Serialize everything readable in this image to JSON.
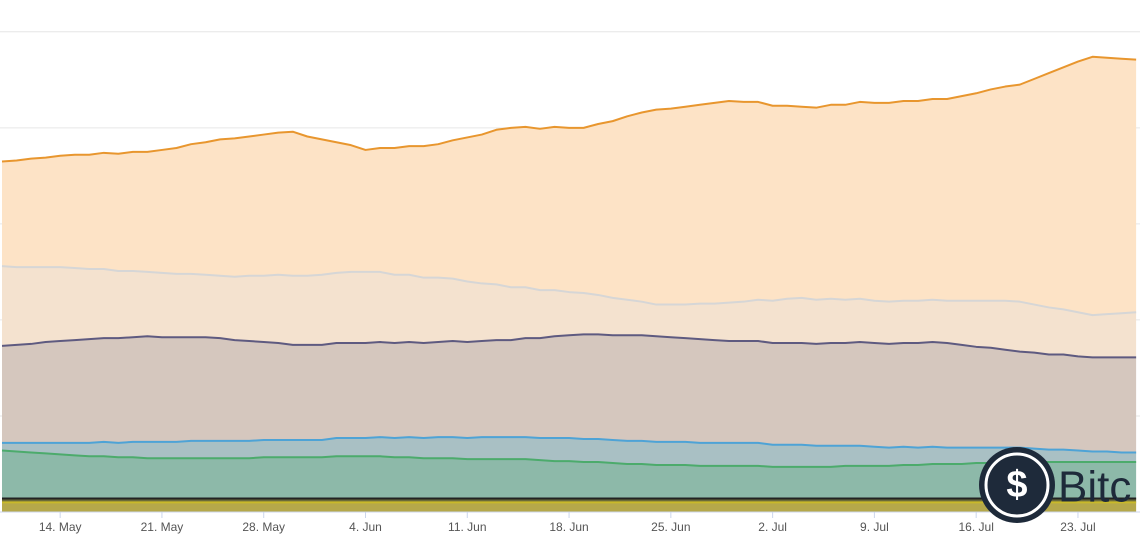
{
  "chart_data": {
    "type": "stacked-area",
    "categories": [
      null,
      null,
      null,
      null,
      "14. May",
      null,
      null,
      null,
      null,
      null,
      null,
      "21. May",
      null,
      null,
      null,
      null,
      null,
      null,
      "28. May",
      null,
      null,
      null,
      null,
      null,
      null,
      "4. Jun",
      null,
      null,
      null,
      null,
      null,
      null,
      "11. Jun",
      null,
      null,
      null,
      null,
      null,
      null,
      "18. Jun",
      null,
      null,
      null,
      null,
      null,
      null,
      "25. Jun",
      null,
      null,
      null,
      null,
      null,
      null,
      "2. Jul",
      null,
      null,
      null,
      null,
      null,
      null,
      "9. Jul",
      null,
      null,
      null,
      null,
      null,
      null,
      "16. Jul",
      null,
      null,
      null,
      null,
      null,
      null,
      "23. Jul",
      null,
      null,
      null,
      null
    ],
    "ylim": [
      0,
      5.3
    ],
    "yticks": [
      1,
      2,
      3,
      4,
      5
    ],
    "grid": true,
    "series": [
      {
        "color": "#c9b92a",
        "fill": "#b5a84a",
        "values": [
          0.1,
          0.1,
          0.1,
          0.1,
          0.1,
          0.1,
          0.1,
          0.1,
          0.1,
          0.1,
          0.1,
          0.1,
          0.1,
          0.1,
          0.1,
          0.1,
          0.1,
          0.1,
          0.1,
          0.1,
          0.1,
          0.1,
          0.1,
          0.1,
          0.1,
          0.1,
          0.1,
          0.1,
          0.1,
          0.1,
          0.1,
          0.1,
          0.1,
          0.1,
          0.1,
          0.1,
          0.1,
          0.1,
          0.1,
          0.1,
          0.1,
          0.1,
          0.1,
          0.1,
          0.1,
          0.1,
          0.1,
          0.1,
          0.1,
          0.1,
          0.1,
          0.1,
          0.1,
          0.1,
          0.1,
          0.1,
          0.1,
          0.1,
          0.1,
          0.1,
          0.1,
          0.1,
          0.1,
          0.1,
          0.1,
          0.1,
          0.1,
          0.1,
          0.1,
          0.1,
          0.1,
          0.1,
          0.1,
          0.1,
          0.1,
          0.1,
          0.1,
          0.1,
          0.1
        ]
      },
      {
        "color": "#222222",
        "fill": "#6b6b3a",
        "values": [
          0.04,
          0.04,
          0.04,
          0.04,
          0.04,
          0.04,
          0.04,
          0.04,
          0.04,
          0.04,
          0.04,
          0.04,
          0.04,
          0.04,
          0.04,
          0.04,
          0.04,
          0.04,
          0.04,
          0.04,
          0.04,
          0.04,
          0.04,
          0.04,
          0.04,
          0.04,
          0.04,
          0.04,
          0.04,
          0.04,
          0.04,
          0.04,
          0.04,
          0.04,
          0.04,
          0.04,
          0.04,
          0.04,
          0.04,
          0.04,
          0.04,
          0.04,
          0.04,
          0.04,
          0.04,
          0.04,
          0.04,
          0.04,
          0.04,
          0.04,
          0.04,
          0.04,
          0.04,
          0.04,
          0.04,
          0.04,
          0.04,
          0.04,
          0.04,
          0.04,
          0.04,
          0.04,
          0.04,
          0.04,
          0.04,
          0.04,
          0.04,
          0.04,
          0.04,
          0.04,
          0.04,
          0.04,
          0.04,
          0.04,
          0.04,
          0.04,
          0.04,
          0.04,
          0.04
        ]
      },
      {
        "color": "#4cab6c",
        "fill": "#8db9a9",
        "values": [
          0.5,
          0.49,
          0.48,
          0.47,
          0.46,
          0.45,
          0.44,
          0.44,
          0.43,
          0.43,
          0.42,
          0.42,
          0.42,
          0.42,
          0.42,
          0.42,
          0.42,
          0.42,
          0.43,
          0.43,
          0.43,
          0.43,
          0.43,
          0.44,
          0.44,
          0.44,
          0.44,
          0.43,
          0.43,
          0.42,
          0.42,
          0.42,
          0.41,
          0.41,
          0.41,
          0.41,
          0.41,
          0.4,
          0.39,
          0.39,
          0.38,
          0.38,
          0.37,
          0.36,
          0.36,
          0.35,
          0.35,
          0.35,
          0.34,
          0.34,
          0.34,
          0.34,
          0.34,
          0.33,
          0.33,
          0.33,
          0.33,
          0.33,
          0.34,
          0.34,
          0.34,
          0.34,
          0.35,
          0.35,
          0.36,
          0.36,
          0.36,
          0.37,
          0.37,
          0.38,
          0.38,
          0.38,
          0.38,
          0.38,
          0.38,
          0.38,
          0.38,
          0.38,
          0.38
        ]
      },
      {
        "color": "#4ea3d6",
        "fill": "#a9c0c4",
        "values": [
          0.08,
          0.09,
          0.1,
          0.11,
          0.12,
          0.13,
          0.14,
          0.15,
          0.15,
          0.16,
          0.17,
          0.17,
          0.17,
          0.18,
          0.18,
          0.18,
          0.18,
          0.18,
          0.18,
          0.18,
          0.18,
          0.18,
          0.18,
          0.19,
          0.19,
          0.19,
          0.2,
          0.2,
          0.21,
          0.21,
          0.22,
          0.22,
          0.22,
          0.23,
          0.23,
          0.23,
          0.23,
          0.23,
          0.24,
          0.24,
          0.24,
          0.24,
          0.24,
          0.24,
          0.24,
          0.24,
          0.24,
          0.24,
          0.24,
          0.24,
          0.24,
          0.24,
          0.24,
          0.23,
          0.23,
          0.23,
          0.22,
          0.22,
          0.21,
          0.21,
          0.2,
          0.19,
          0.19,
          0.18,
          0.18,
          0.17,
          0.17,
          0.16,
          0.16,
          0.15,
          0.15,
          0.14,
          0.13,
          0.13,
          0.12,
          0.11,
          0.11,
          0.1,
          0.1
        ]
      },
      {
        "color": "#5e5a80",
        "fill": "#d5c7be",
        "values": [
          1.01,
          1.02,
          1.03,
          1.05,
          1.06,
          1.07,
          1.08,
          1.08,
          1.09,
          1.09,
          1.1,
          1.09,
          1.09,
          1.08,
          1.08,
          1.07,
          1.05,
          1.04,
          1.02,
          1.01,
          0.99,
          0.99,
          0.99,
          0.99,
          0.99,
          0.99,
          0.99,
          0.99,
          0.99,
          0.99,
          0.99,
          1.0,
          1.0,
          1.0,
          1.01,
          1.01,
          1.03,
          1.04,
          1.06,
          1.07,
          1.09,
          1.09,
          1.09,
          1.1,
          1.1,
          1.1,
          1.09,
          1.08,
          1.08,
          1.07,
          1.06,
          1.06,
          1.06,
          1.06,
          1.06,
          1.06,
          1.06,
          1.07,
          1.07,
          1.08,
          1.08,
          1.08,
          1.08,
          1.09,
          1.09,
          1.09,
          1.07,
          1.05,
          1.04,
          1.02,
          1.0,
          1.0,
          0.99,
          0.99,
          0.98,
          0.98,
          0.98,
          0.99,
          0.99
        ]
      },
      {
        "color": "#d6d6d6",
        "fill": "#f4e2cf",
        "values": [
          0.83,
          0.81,
          0.8,
          0.78,
          0.77,
          0.75,
          0.73,
          0.72,
          0.7,
          0.69,
          0.67,
          0.67,
          0.66,
          0.66,
          0.65,
          0.65,
          0.66,
          0.68,
          0.69,
          0.71,
          0.72,
          0.72,
          0.73,
          0.73,
          0.74,
          0.74,
          0.73,
          0.71,
          0.7,
          0.68,
          0.67,
          0.65,
          0.63,
          0.6,
          0.58,
          0.55,
          0.53,
          0.5,
          0.48,
          0.45,
          0.43,
          0.41,
          0.39,
          0.37,
          0.35,
          0.33,
          0.34,
          0.35,
          0.37,
          0.38,
          0.4,
          0.41,
          0.43,
          0.44,
          0.46,
          0.47,
          0.46,
          0.46,
          0.45,
          0.45,
          0.44,
          0.44,
          0.44,
          0.44,
          0.44,
          0.44,
          0.46,
          0.48,
          0.49,
          0.51,
          0.52,
          0.5,
          0.49,
          0.47,
          0.46,
          0.44,
          0.45,
          0.46,
          0.47
        ]
      },
      {
        "color": "#e8962e",
        "fill": "#fde3c6",
        "values": [
          1.09,
          1.11,
          1.13,
          1.14,
          1.16,
          1.18,
          1.19,
          1.21,
          1.22,
          1.24,
          1.25,
          1.28,
          1.31,
          1.35,
          1.38,
          1.42,
          1.44,
          1.45,
          1.47,
          1.48,
          1.5,
          1.45,
          1.41,
          1.36,
          1.32,
          1.27,
          1.29,
          1.32,
          1.34,
          1.37,
          1.39,
          1.44,
          1.5,
          1.55,
          1.61,
          1.66,
          1.67,
          1.68,
          1.7,
          1.71,
          1.72,
          1.78,
          1.84,
          1.91,
          1.97,
          2.03,
          2.04,
          2.06,
          2.07,
          2.09,
          2.1,
          2.08,
          2.06,
          2.03,
          2.01,
          1.99,
          2.0,
          2.02,
          2.03,
          2.05,
          2.06,
          2.07,
          2.08,
          2.08,
          2.09,
          2.1,
          2.13,
          2.16,
          2.2,
          2.23,
          2.26,
          2.35,
          2.44,
          2.52,
          2.61,
          2.69,
          2.67,
          2.65,
          2.63
        ]
      }
    ],
    "watermark": "Bitc"
  }
}
